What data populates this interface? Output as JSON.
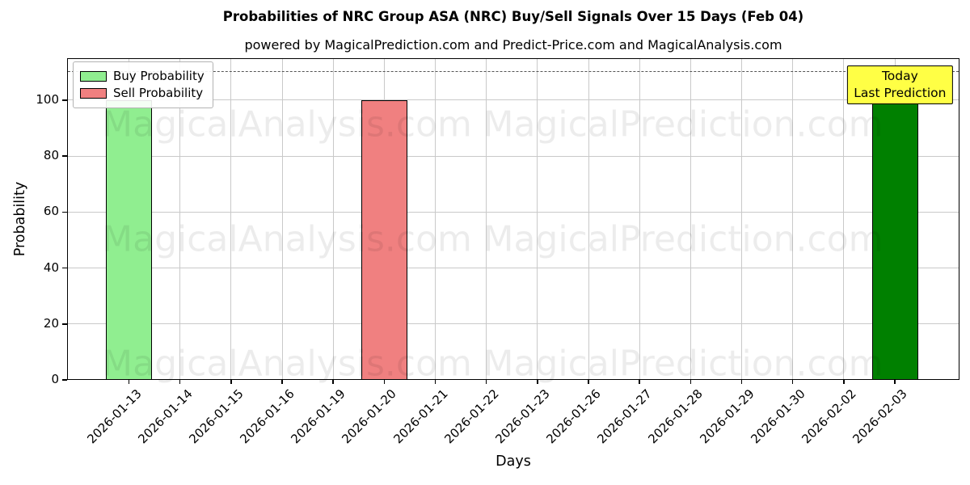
{
  "figure": {
    "title": "Probabilities of NRC Group ASA (NRC) Buy/Sell Signals Over 15 Days (Feb 04)",
    "subtitle": "powered by MagicalPrediction.com and Predict-Price.com and MagicalAnalysis.com"
  },
  "chart_data": {
    "type": "bar",
    "title": "Probabilities of NRC Group ASA (NRC) Buy/Sell Signals Over 15 Days (Feb 04)",
    "subtitle": "powered by MagicalPrediction.com and Predict-Price.com and MagicalAnalysis.com",
    "xlabel": "Days",
    "ylabel": "Probability",
    "categories": [
      "2026-01-13",
      "2026-01-14",
      "2026-01-15",
      "2026-01-16",
      "2026-01-19",
      "2026-01-20",
      "2026-01-21",
      "2026-01-22",
      "2026-01-23",
      "2026-01-26",
      "2026-01-27",
      "2026-01-28",
      "2026-01-29",
      "2026-01-30",
      "2026-02-02",
      "2026-02-03"
    ],
    "series": [
      {
        "name": "Buy Probability",
        "color": "#90ee90",
        "edge_color": "#000000",
        "values": [
          100,
          0,
          0,
          0,
          0,
          0,
          0,
          0,
          0,
          0,
          0,
          0,
          0,
          0,
          0,
          0
        ]
      },
      {
        "name": "Sell Probability",
        "color": "#f08080",
        "edge_color": "#000000",
        "values": [
          0,
          0,
          0,
          0,
          0,
          100,
          0,
          0,
          0,
          0,
          0,
          0,
          0,
          0,
          0,
          0
        ]
      },
      {
        "name": "Today Last Prediction",
        "color": "#008000",
        "edge_color": "#000000",
        "values": [
          0,
          0,
          0,
          0,
          0,
          0,
          0,
          0,
          0,
          0,
          0,
          0,
          0,
          0,
          0,
          100
        ]
      }
    ],
    "ylim": [
      0,
      115
    ],
    "yticks": [
      0,
      20,
      40,
      60,
      80,
      100
    ],
    "grid": true,
    "dashed_line_y": 110,
    "legend": {
      "position": "upper-left",
      "entries": [
        {
          "label": "Buy Probability",
          "color": "#90ee90"
        },
        {
          "label": "Sell Probability",
          "color": "#f08080"
        }
      ]
    },
    "annotation": {
      "lines": [
        "Today",
        "Last Prediction"
      ],
      "bg_color": "#ffff45",
      "border_color": "#000000",
      "x_index": 15
    }
  },
  "watermarks": {
    "left_text": "MagicalAnalysis.com",
    "right_text": "MagicalPrediction.com",
    "row_count": 3
  }
}
